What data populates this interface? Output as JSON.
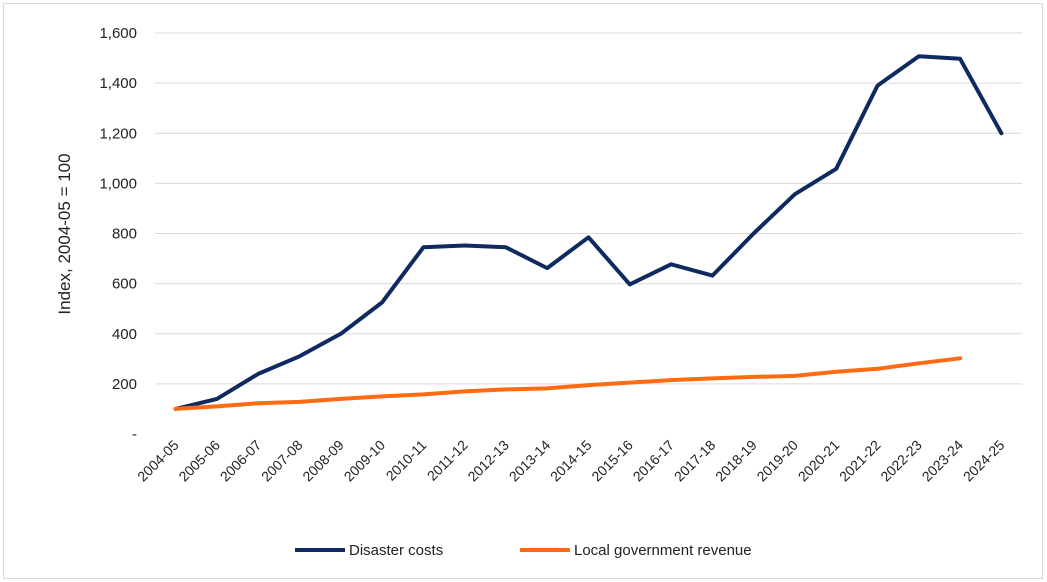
{
  "chart_data": {
    "type": "line",
    "title": "",
    "xlabel": "",
    "ylabel": "Index, 2004-05 = 100",
    "ylim": [
      0,
      1600
    ],
    "yticks": [
      0,
      200,
      400,
      600,
      800,
      1000,
      1200,
      1400,
      1600
    ],
    "ytick_labels": [
      "-",
      "200",
      "400",
      "600",
      "800",
      "1,000",
      "1,200",
      "1,400",
      "1,600"
    ],
    "grid": true,
    "legend_position": "bottom",
    "categories": [
      "2004-05",
      "2005-06",
      "2006-07",
      "2007-08",
      "2008-09",
      "2009-10",
      "2010-11",
      "2011-12",
      "2012-13",
      "2013-14",
      "2014-15",
      "2015-16",
      "2016-17",
      "2017-18",
      "2018-19",
      "2019-20",
      "2020-21",
      "2021-22",
      "2022-23",
      "2023-24",
      "2024-25"
    ],
    "series": [
      {
        "name": "Disaster costs",
        "color": "#0e2a5e",
        "values": [
          100,
          140,
          240,
          310,
          400,
          525,
          745,
          752,
          745,
          662,
          785,
          597,
          677,
          632,
          800,
          957,
          1058,
          1390,
          1507,
          1497,
          1200
        ]
      },
      {
        "name": "Local government revenue",
        "color": "#ff6a13",
        "values": [
          100,
          110,
          123,
          128,
          140,
          150,
          158,
          170,
          178,
          182,
          195,
          205,
          215,
          222,
          228,
          232,
          248,
          260,
          282,
          302,
          null
        ]
      }
    ]
  }
}
